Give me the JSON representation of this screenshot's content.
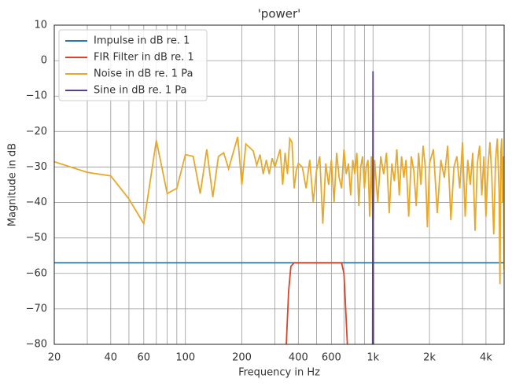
{
  "chart_data": {
    "type": "line",
    "title": "'power'",
    "xlabel": "Frequency in Hz",
    "ylabel": "Magnitude in dB",
    "xscale": "log",
    "grid": true,
    "legend": "upper left",
    "xlim": [
      20,
      5000
    ],
    "ylim": [
      -80,
      10
    ],
    "xticks": [
      20,
      40,
      60,
      100,
      200,
      400,
      600,
      {
        "value": 1000,
        "label": "1k"
      },
      {
        "value": 2000,
        "label": "2k"
      },
      {
        "value": 4000,
        "label": "4k"
      }
    ],
    "xminorticks": [
      30,
      50,
      70,
      80,
      90,
      300,
      500,
      700,
      800,
      900,
      3000
    ],
    "yticks": [
      {
        "value": -80,
        "label": "−80"
      },
      {
        "value": -70,
        "label": "−70"
      },
      {
        "value": -60,
        "label": "−60"
      },
      {
        "value": -50,
        "label": "−50"
      },
      {
        "value": -40,
        "label": "−40"
      },
      {
        "value": -30,
        "label": "−30"
      },
      {
        "value": -20,
        "label": "−20"
      },
      {
        "value": -10,
        "label": "−10"
      },
      0,
      10
    ],
    "series": [
      {
        "name": "Impulse in dB re. 1",
        "color": "#2a78b0",
        "x": [
          20,
          5000
        ],
        "values": [
          -57,
          -57
        ]
      },
      {
        "name": "FIR Filter in dB re. 1",
        "color": "#d9442a",
        "x": [
          345,
          355,
          365,
          380,
          400,
          680,
          700,
          715,
          730
        ],
        "values": [
          -80,
          -65,
          -58,
          -57,
          -57,
          -57,
          -60,
          -70,
          -80
        ]
      },
      {
        "name": "Noise in dB re. 1 Pa",
        "color": "#e8a92a",
        "x": [
          20,
          30,
          40,
          50,
          60,
          70,
          80,
          90,
          100,
          110,
          120,
          130,
          140,
          150,
          160,
          170,
          190,
          200,
          210,
          230,
          240,
          250,
          260,
          270,
          280,
          290,
          300,
          320,
          330,
          340,
          350,
          360,
          370,
          380,
          390,
          400,
          420,
          440,
          460,
          480,
          500,
          520,
          540,
          560,
          580,
          600,
          620,
          640,
          660,
          680,
          700,
          720,
          740,
          760,
          780,
          800,
          820,
          840,
          860,
          880,
          900,
          920,
          940,
          960,
          980,
          1000,
          1020,
          1060,
          1100,
          1140,
          1180,
          1220,
          1260,
          1300,
          1340,
          1380,
          1420,
          1460,
          1500,
          1550,
          1600,
          1650,
          1700,
          1750,
          1800,
          1850,
          1900,
          1950,
          2000,
          2100,
          2200,
          2300,
          2400,
          2500,
          2600,
          2700,
          2800,
          2900,
          3000,
          3100,
          3200,
          3300,
          3400,
          3500,
          3600,
          3700,
          3800,
          3900,
          4000,
          4100,
          4200,
          4300,
          4400,
          4500,
          4600,
          4700,
          4750,
          4800,
          4850,
          4900,
          4950,
          5000
        ],
        "values": [
          -28.5,
          -31.5,
          -32.5,
          -39,
          -46,
          -22.5,
          -37.5,
          -36,
          -26.5,
          -27,
          -37.5,
          -25,
          -38.5,
          -27,
          -26,
          -30.5,
          -21.5,
          -35,
          -23.5,
          -25.5,
          -29.5,
          -26.5,
          -32,
          -28,
          -32,
          -27.5,
          -30,
          -25,
          -35,
          -26,
          -32,
          -22,
          -23,
          -36,
          -31,
          -29,
          -30,
          -36,
          -28,
          -40,
          -31,
          -27,
          -46,
          -29,
          -35,
          -28,
          -40,
          -26,
          -33,
          -36,
          -25,
          -32,
          -29,
          -38,
          -28,
          -32,
          -26,
          -41,
          -30,
          -27,
          -36,
          -30,
          -28,
          -44,
          -27,
          -49,
          -28,
          -40,
          -27,
          -32,
          -26,
          -43,
          -29,
          -34,
          -25,
          -38,
          -27,
          -33,
          -28,
          -44,
          -27,
          -31,
          -41,
          -26,
          -35,
          -24,
          -30,
          -47,
          -29,
          -25,
          -43,
          -28,
          -33,
          -24,
          -45,
          -30,
          -27,
          -36,
          -23,
          -44,
          -28,
          -35,
          -26,
          -48,
          -29,
          -24,
          -38,
          -27,
          -44,
          -30,
          -23,
          -33,
          -49,
          -28,
          -22,
          -37,
          -63,
          -26,
          -22,
          -40,
          -27,
          -59
        ]
      },
      {
        "name": "Sine in dB re. 1 Pa",
        "color": "#5a3f8c",
        "x": [
          995,
          1000,
          1005
        ],
        "values": [
          -80,
          -3,
          -80
        ]
      }
    ]
  }
}
